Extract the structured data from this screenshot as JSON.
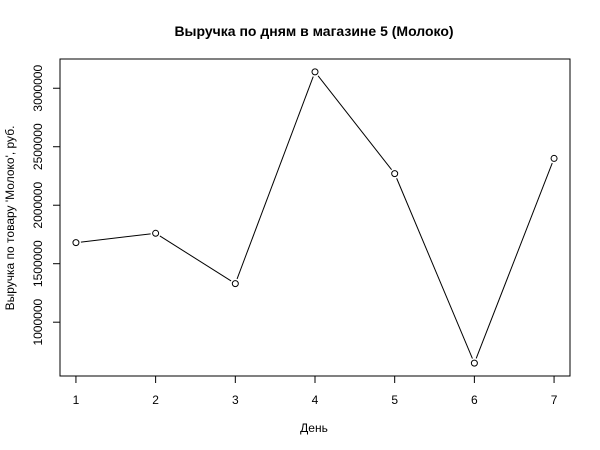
{
  "chart_data": {
    "type": "line",
    "title": "Выручка по дням в магазине 5 (Молоко)",
    "xlabel": "День",
    "ylabel": "Выручка по товару 'Молоко', руб.",
    "x": [
      1,
      2,
      3,
      4,
      5,
      6,
      7
    ],
    "values": [
      1680000,
      1760000,
      1330000,
      3140000,
      2270000,
      650000,
      2400000
    ],
    "xlim": [
      0.8,
      7.2
    ],
    "ylim": [
      540000,
      3250000
    ],
    "x_ticks": [
      1,
      2,
      3,
      4,
      5,
      6,
      7
    ],
    "y_ticks": [
      1000000,
      1500000,
      2000000,
      2500000,
      3000000
    ],
    "y_tick_labels": [
      "1000000",
      "1500000",
      "2000000",
      "2500000",
      "3000000"
    ],
    "marker": "open-circle",
    "grid": false,
    "line_color": "#000000"
  }
}
